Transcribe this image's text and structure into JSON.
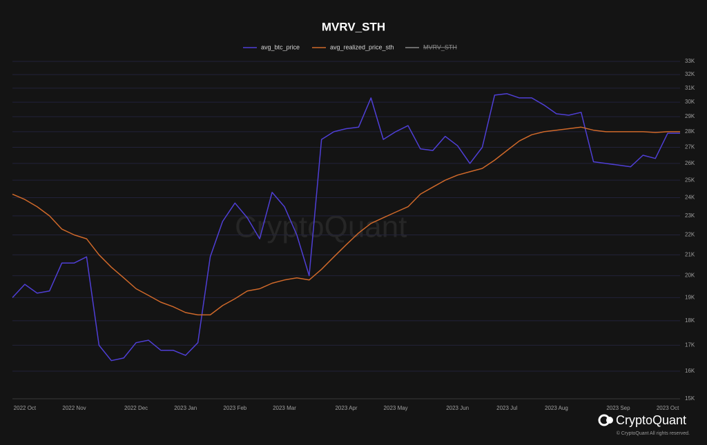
{
  "chart_data": {
    "type": "line",
    "title": "MVRV_STH",
    "watermark": "CryptoQuant",
    "brand": "CryptoQuant",
    "copyright": "© CryptoQuant All rights reserved.",
    "log_scale": true,
    "grid": true,
    "categories": [
      null,
      "2022 Oct",
      null,
      null,
      null,
      "2022 Nov",
      null,
      null,
      null,
      null,
      "2022 Dec",
      null,
      null,
      null,
      "2023 Jan",
      null,
      null,
      null,
      "2023 Feb",
      null,
      null,
      null,
      "2023 Mar",
      null,
      null,
      null,
      null,
      "2023 Apr",
      null,
      null,
      null,
      "2023 May",
      null,
      null,
      null,
      null,
      "2023 Jun",
      null,
      null,
      null,
      "2023 Jul",
      null,
      null,
      null,
      "2023 Aug",
      null,
      null,
      null,
      null,
      "2023 Sep",
      null,
      null,
      null,
      "2023 Oct",
      null
    ],
    "series": [
      {
        "name": "avg_btc_price",
        "color": "#4f3fd6",
        "values": [
          19000,
          19600,
          19200,
          19300,
          20600,
          20600,
          20900,
          17000,
          16400,
          16500,
          17100,
          17200,
          16800,
          16800,
          16600,
          17100,
          20900,
          22700,
          23700,
          22900,
          21800,
          24300,
          23500,
          22000,
          20000,
          27500,
          28000,
          28200,
          28300,
          30300,
          27500,
          28000,
          28400,
          26900,
          26800,
          27700,
          27100,
          26000,
          27000,
          30500,
          30600,
          30300,
          30300,
          29800,
          29200,
          29100,
          29300,
          26100,
          26000,
          25900,
          25800,
          26500,
          26300,
          27900,
          27900
        ]
      },
      {
        "name": "avg_realized_price_sth",
        "color": "#d0692a",
        "values": [
          24200,
          23900,
          23500,
          23000,
          22300,
          22000,
          21800,
          21000,
          20400,
          19900,
          19400,
          19100,
          18800,
          18600,
          18350,
          18250,
          18250,
          18650,
          18950,
          19300,
          19400,
          19650,
          19800,
          19900,
          19800,
          20300,
          20900,
          21500,
          22100,
          22600,
          22900,
          23200,
          23500,
          24200,
          24600,
          25000,
          25300,
          25500,
          25700,
          26200,
          26800,
          27400,
          27800,
          28000,
          28100,
          28200,
          28300,
          28100,
          28000,
          28000,
          28000,
          28000,
          27950,
          28000,
          28000
        ]
      }
    ],
    "hidden_series": [
      {
        "name": "MVRV_STH",
        "color": "#8a8a8a"
      }
    ],
    "ylim": [
      15000,
      33000
    ],
    "yticks": [
      {
        "value": 15000,
        "label": "15K"
      },
      {
        "value": 16000,
        "label": "16K"
      },
      {
        "value": 17000,
        "label": "17K"
      },
      {
        "value": 18000,
        "label": "18K"
      },
      {
        "value": 19000,
        "label": "19K"
      },
      {
        "value": 20000,
        "label": "20K"
      },
      {
        "value": 21000,
        "label": "21K"
      },
      {
        "value": 22000,
        "label": "22K"
      },
      {
        "value": 23000,
        "label": "23K"
      },
      {
        "value": 24000,
        "label": "24K"
      },
      {
        "value": 25000,
        "label": "25K"
      },
      {
        "value": 26000,
        "label": "26K"
      },
      {
        "value": 27000,
        "label": "27K"
      },
      {
        "value": 28000,
        "label": "28K"
      },
      {
        "value": 29000,
        "label": "29K"
      },
      {
        "value": 30000,
        "label": "30K"
      },
      {
        "value": 31000,
        "label": "31K"
      },
      {
        "value": 32000,
        "label": "32K"
      },
      {
        "value": 33000,
        "label": "33K"
      }
    ]
  }
}
